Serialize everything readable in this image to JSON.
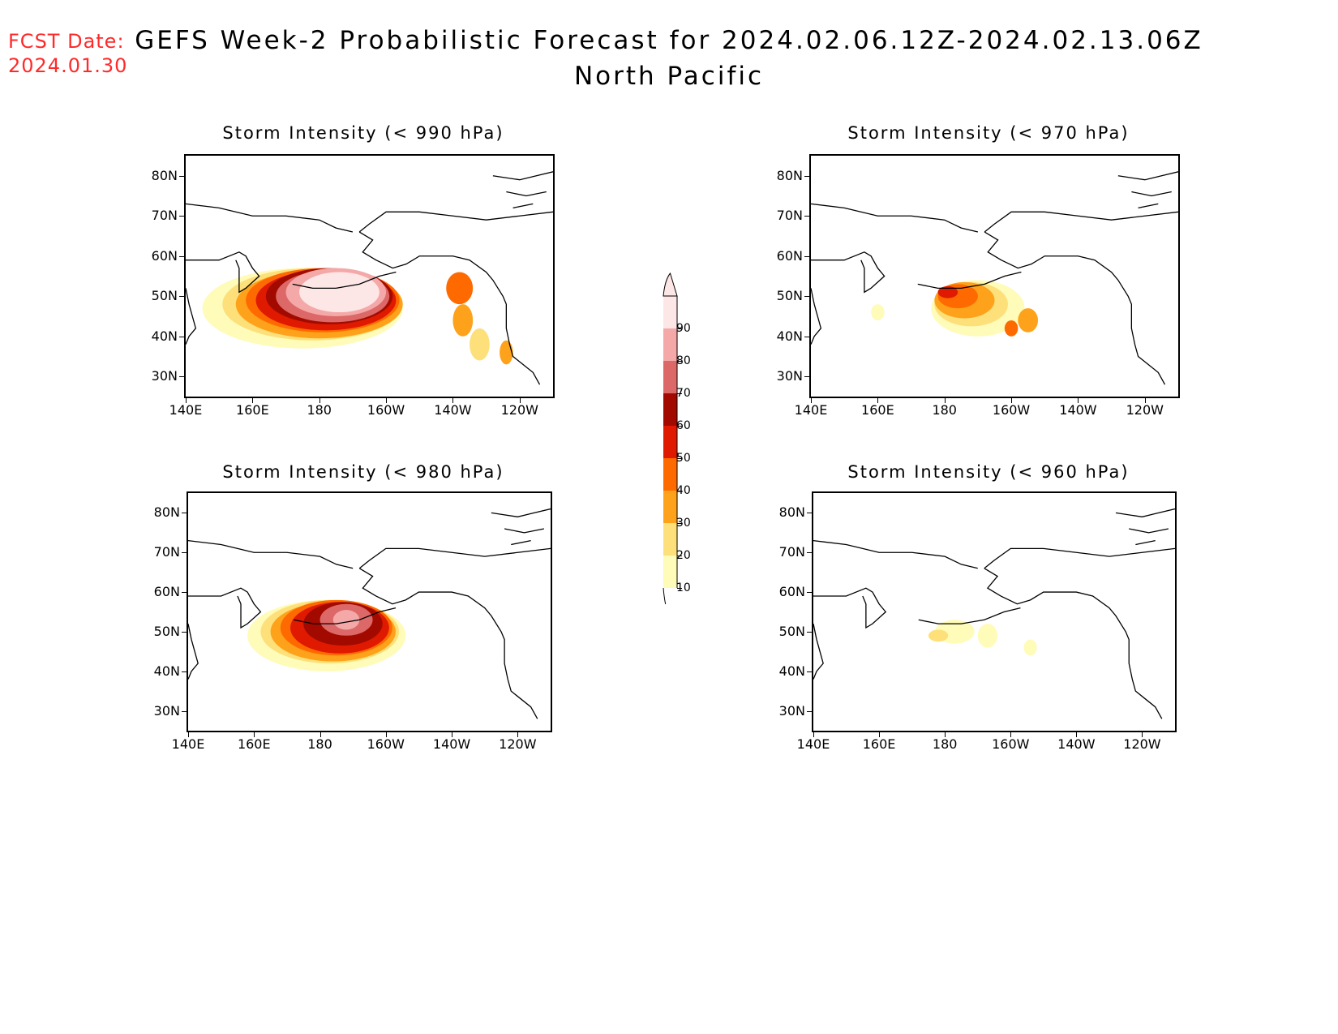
{
  "header": {
    "fcst_label": "FCST Date:",
    "fcst_date": "2024.01.30",
    "title": "GEFS Week-2 Probabilistic Forecast for 2024.02.06.12Z-2024.02.13.06Z",
    "subtitle": "North Pacific"
  },
  "colors": {
    "background": "#ffffff",
    "fcst_text": "#ff2a2a",
    "coastline": "#000000"
  },
  "colorbar": {
    "levels": [
      "10",
      "20",
      "30",
      "40",
      "50",
      "60",
      "70",
      "80",
      "90"
    ],
    "colors": [
      "#fffbb8",
      "#fde07a",
      "#fda21a",
      "#fe6a00",
      "#e01a00",
      "#a20a00",
      "#dc6868",
      "#f4a8a8",
      "#fde6e6"
    ]
  },
  "axes": {
    "lat_labels": [
      "80N",
      "70N",
      "60N",
      "50N",
      "40N",
      "30N"
    ],
    "lon_labels": [
      "140E",
      "160E",
      "180",
      "160W",
      "140W",
      "120W"
    ]
  },
  "panels": [
    {
      "id": "p990",
      "title": "Storm Intensity (< 990 hPa)",
      "max_category": 90
    },
    {
      "id": "p970",
      "title": "Storm Intensity (< 970 hPa)",
      "max_category": 60
    },
    {
      "id": "p980",
      "title": "Storm Intensity (< 980 hPa)",
      "max_category": 80
    },
    {
      "id": "p960",
      "title": "Storm Intensity (< 960 hPa)",
      "max_category": 20
    }
  ]
}
